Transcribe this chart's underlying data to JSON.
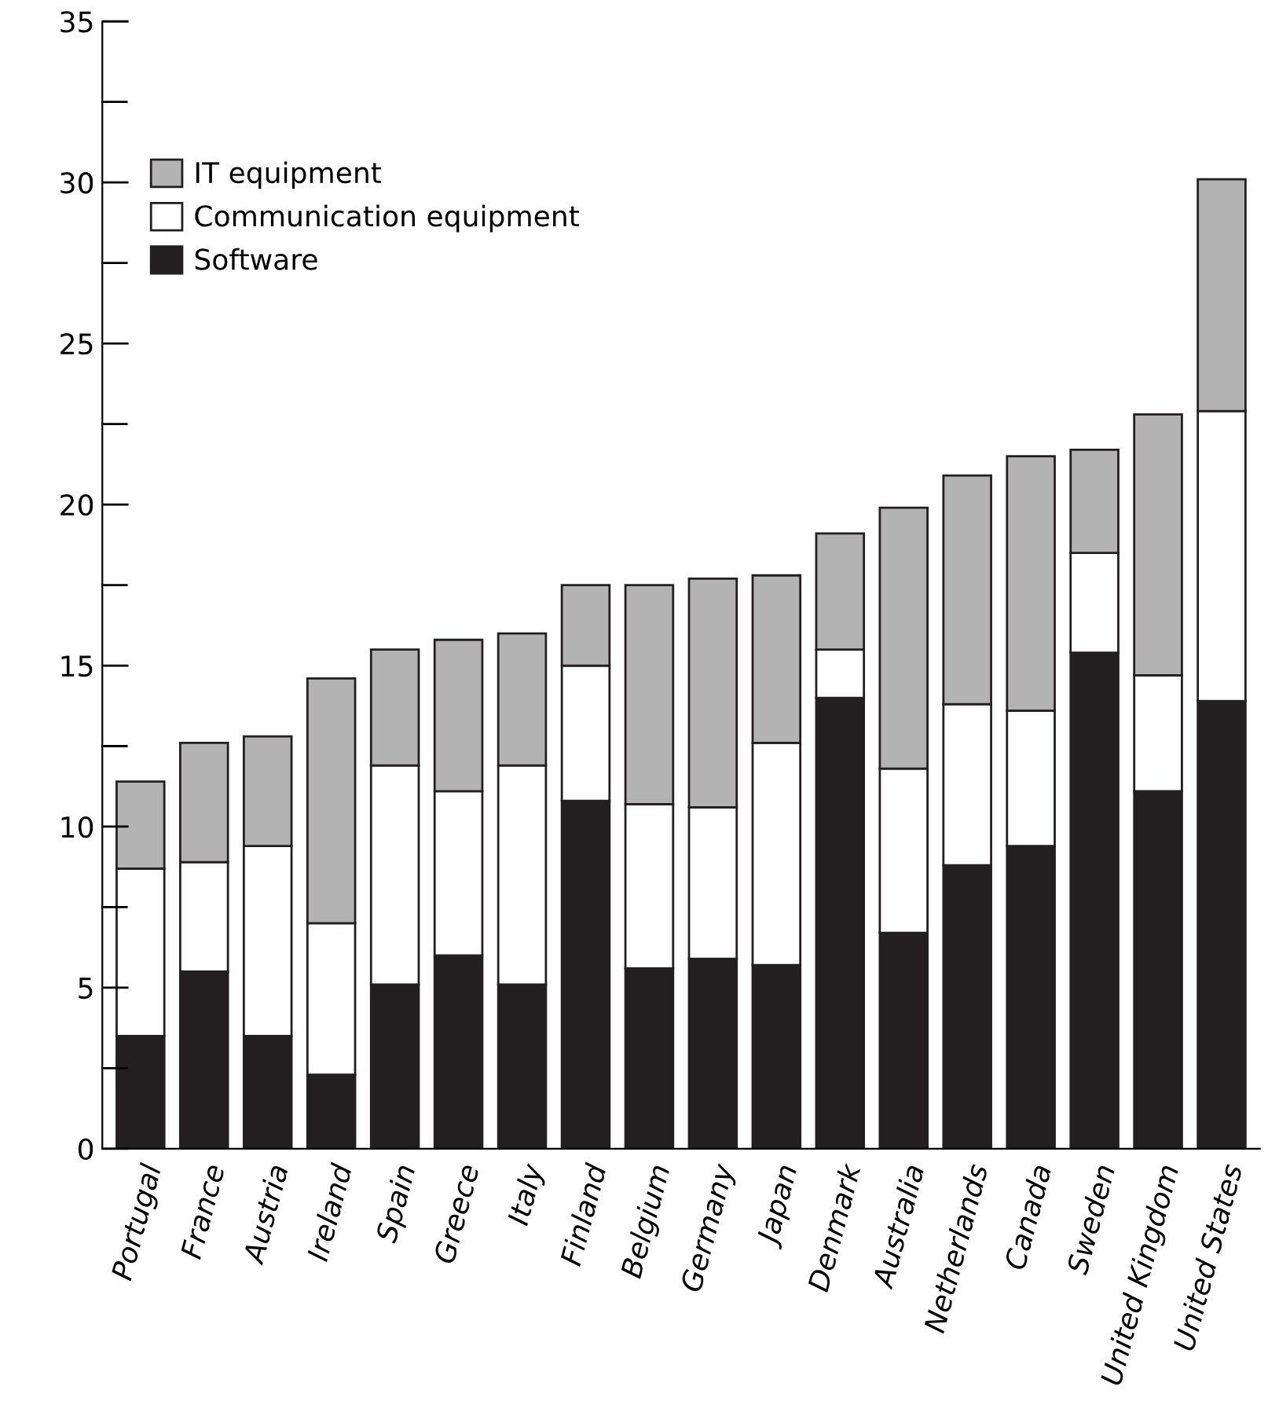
{
  "chart_data": {
    "type": "bar",
    "stacked": true,
    "categories": [
      "Portugal",
      "France",
      "Austria",
      "Ireland",
      "Spain",
      "Greece",
      "Italy",
      "Finland",
      "Belgium",
      "Germany",
      "Japan",
      "Denmark",
      "Australia",
      "Netherlands",
      "Canada",
      "Sweden",
      "United Kingdom",
      "United States"
    ],
    "series": [
      {
        "name": "Software",
        "color": "#231f20",
        "values": [
          3.5,
          5.5,
          3.5,
          2.3,
          5.1,
          6.0,
          5.1,
          10.8,
          5.6,
          5.9,
          5.7,
          14.0,
          6.7,
          8.8,
          9.4,
          15.4,
          11.1,
          13.9
        ]
      },
      {
        "name": "Communication equipment",
        "color": "#ffffff",
        "values": [
          5.2,
          3.4,
          5.9,
          4.7,
          6.8,
          5.1,
          6.8,
          4.2,
          5.1,
          4.7,
          6.9,
          1.5,
          5.1,
          5.0,
          4.2,
          3.1,
          3.6,
          9.0
        ]
      },
      {
        "name": "IT equipment",
        "color": "#b3b3b3",
        "values": [
          2.7,
          3.7,
          3.4,
          7.6,
          3.6,
          4.7,
          4.1,
          2.5,
          6.8,
          7.1,
          5.2,
          3.6,
          8.1,
          7.1,
          7.9,
          3.2,
          8.1,
          7.2
        ]
      }
    ],
    "ylim": [
      0,
      35
    ],
    "yticks": [
      0,
      {
        "value": 2.5,
        "label": null
      },
      5,
      {
        "value": 7.5,
        "label": null
      },
      10,
      {
        "value": 12.5,
        "label": null
      },
      15,
      {
        "value": 17.5,
        "label": null
      },
      20,
      {
        "value": 22.5,
        "label": null
      },
      25,
      {
        "value": 27.5,
        "label": null
      },
      30,
      {
        "value": 32.5,
        "label": null
      },
      35
    ],
    "legend": "top left",
    "grid": false
  }
}
